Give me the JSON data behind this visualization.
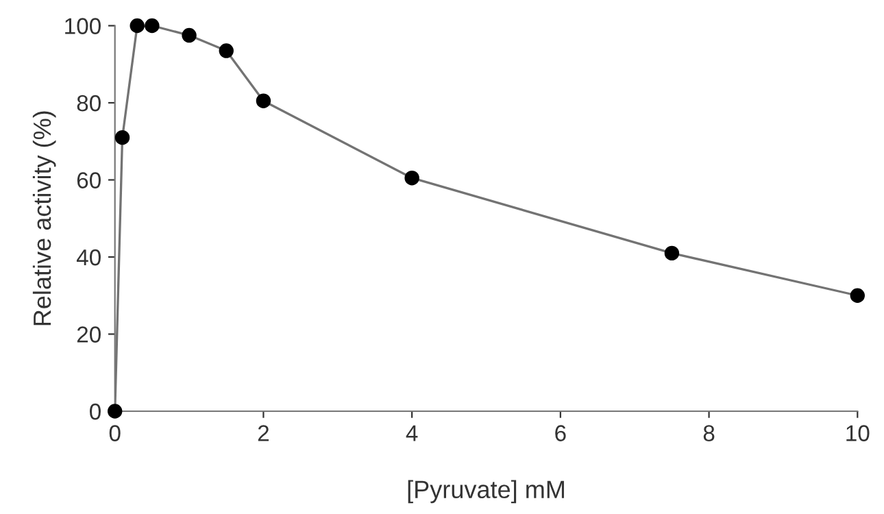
{
  "chart_data": {
    "type": "line",
    "xlabel": "[Pyruvate] mM",
    "ylabel": "Relative activity (%)",
    "x": [
      0,
      0.1,
      0.3,
      0.5,
      1,
      1.5,
      2,
      4,
      7.5,
      10
    ],
    "series": [
      {
        "color": "#000000",
        "values": [
          0,
          71,
          100,
          100,
          97.5,
          93.5,
          80.5,
          60.5,
          41,
          30
        ]
      }
    ],
    "xlim": [
      0,
      10
    ],
    "xticks": [
      0,
      2,
      4,
      6,
      8,
      10
    ],
    "ylim": [
      0,
      100
    ],
    "yticks": [
      0,
      20,
      40,
      60,
      80,
      100
    ],
    "marker": "circle",
    "line_style": "solid",
    "grid": false,
    "legend": false
  }
}
